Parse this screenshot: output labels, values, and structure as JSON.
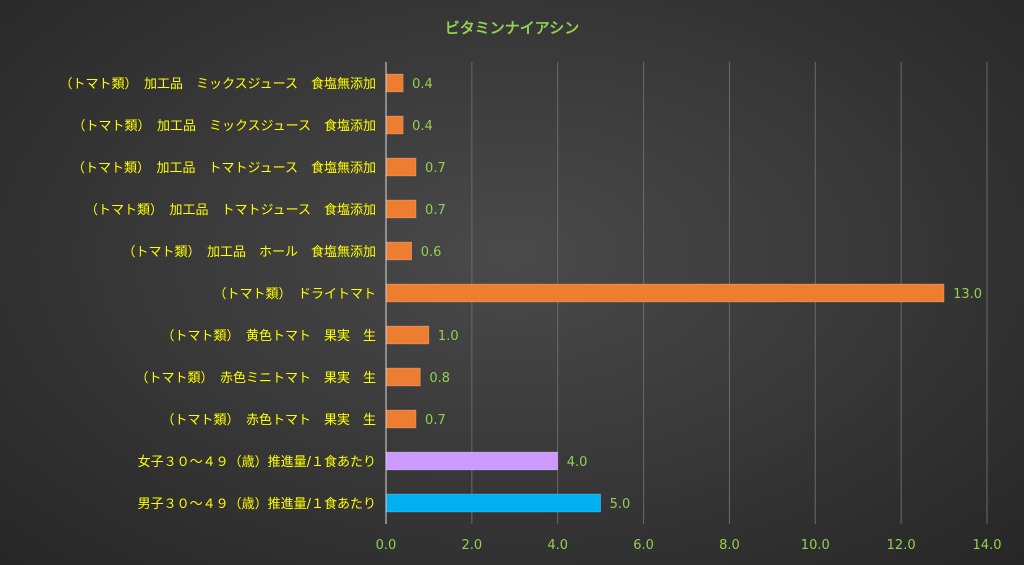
{
  "chart_data": {
    "type": "bar",
    "orientation": "horizontal",
    "title": "ビタミンナイアシン",
    "categories": [
      "（トマト類）　加工品　ミックスジュース　食塩無添加",
      "（トマト類）　加工品　ミックスジュース　食塩添加",
      "（トマト類）　加工品　トマトジュース　食塩無添加",
      "（トマト類）　加工品　トマトジュース　食塩添加",
      "（トマト類）　加工品　ホール　食塩無添加",
      "（トマト類）　ドライトマト",
      "（トマト類）　黄色トマト　果実　生",
      "（トマト類）　赤色ミニトマト　果実　生",
      "（トマト類）　赤色トマト　果実　生",
      "女子３０～４９（歳）推進量/１食あたり",
      "男子３０～４９（歳）推進量/１食あたり"
    ],
    "values": [
      0.4,
      0.4,
      0.7,
      0.7,
      0.6,
      13.0,
      1.0,
      0.8,
      0.7,
      4.0,
      5.0
    ],
    "data_labels": [
      "0.4",
      "0.4",
      "0.7",
      "0.7",
      "0.6",
      "13.0",
      "1.0",
      "0.8",
      "0.7",
      "4.0",
      "5.0"
    ],
    "bar_colors": [
      "#ed7d31",
      "#ed7d31",
      "#ed7d31",
      "#ed7d31",
      "#ed7d31",
      "#ed7d31",
      "#ed7d31",
      "#ed7d31",
      "#ed7d31",
      "#cc99ff",
      "#00b0f0"
    ],
    "xlim": [
      0,
      14
    ],
    "xticks": [
      "0.0",
      "2.0",
      "4.0",
      "6.0",
      "8.0",
      "10.0",
      "12.0",
      "14.0"
    ],
    "xlabel": "",
    "ylabel": "",
    "grid": true,
    "colors": {
      "title": "#92d050",
      "category_label": "#ffff00",
      "tick_label": "#92d050",
      "data_label": "#92d050",
      "gridline": "#6a6a6a",
      "axis": "#d9d9d9"
    }
  }
}
